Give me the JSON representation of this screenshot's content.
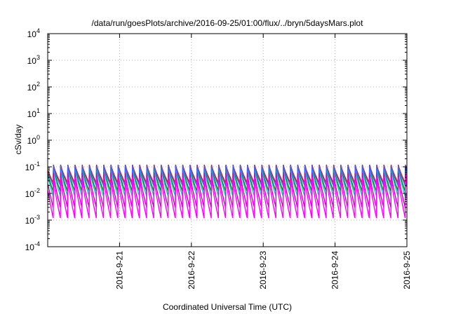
{
  "chart_data": {
    "type": "line",
    "title": "/data/run/goesPlots/archive/2016-09-25/01:00/flux/../bryn/5daysMars.plot",
    "xlabel": "Coordinated Universal Time (UTC)",
    "ylabel": "cSv/day",
    "y_scale": "log",
    "ylim_exponent": [
      -4,
      4
    ],
    "y_ticks": [
      {
        "base": "10",
        "exp": "-4"
      },
      {
        "base": "10",
        "exp": "-3"
      },
      {
        "base": "10",
        "exp": "-2"
      },
      {
        "base": "10",
        "exp": "-1"
      },
      {
        "base": "10",
        "exp": "0"
      },
      {
        "base": "10",
        "exp": "1"
      },
      {
        "base": "10",
        "exp": "2"
      },
      {
        "base": "10",
        "exp": "3"
      },
      {
        "base": "10",
        "exp": "4"
      }
    ],
    "x_range_days": [
      "2016-09-20 01:00",
      "2016-09-25 01:00"
    ],
    "x_ticks": [
      {
        "label": "2016-9-21",
        "day": 1
      },
      {
        "label": "2016-9-22",
        "day": 2
      },
      {
        "label": "2016-9-23",
        "day": 3
      },
      {
        "label": "2016-9-24",
        "day": 4
      },
      {
        "label": "2016-9-25",
        "day": 5
      }
    ],
    "grid": true,
    "period_hours": 2.4,
    "series": [
      {
        "color": "#ff0000",
        "peak": 0.12,
        "trough": 0.025
      },
      {
        "color": "#008000",
        "peak": 0.1,
        "trough": 0.012
      },
      {
        "color": "#00cccc",
        "peak": 0.09,
        "trough": 0.008
      },
      {
        "color": "#3366ff",
        "peak": 0.11,
        "trough": 0.02
      },
      {
        "color": "#cc00cc",
        "peak": 0.06,
        "trough": 0.003
      },
      {
        "color": "#ff00ff",
        "peak": 0.04,
        "trough": 0.0012
      }
    ]
  }
}
